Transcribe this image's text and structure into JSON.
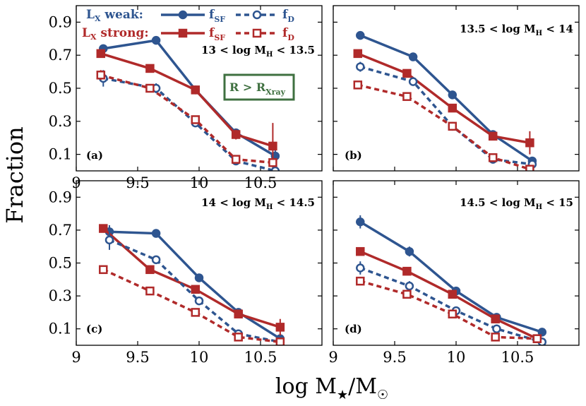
{
  "colors": {
    "weak": "#2e5590",
    "strong": "#b02a2a",
    "annotation": "#3f7040",
    "frame": "#000000"
  },
  "axis_titles": {
    "xlabel": "log M",
    "xlabel_sub": "★",
    "xlabel_tail": "/M",
    "xlabel_sub2": "☉",
    "ylabel": "Fraction"
  },
  "legend": {
    "weak_label": "L",
    "weak_label_sub": "X",
    "weak_label_tail": " weak:",
    "strong_label": "L",
    "strong_label_sub": "X",
    "strong_label_tail": " strong:",
    "fsf_label": "f",
    "fsf_sub": "SF",
    "fd_label": "f",
    "fd_sub": "D"
  },
  "annotation_box": {
    "text": "R > R",
    "sub": "Xray"
  },
  "chart_data": [
    {
      "type": "line",
      "panel_tag": "(a)",
      "range_label": {
        "prefix": "13 < log M",
        "sub": "H",
        "suffix": " < 13.5"
      },
      "xlim": [
        9.0,
        11.0
      ],
      "ylim": [
        0.0,
        1.0
      ],
      "xticks": [
        "9",
        "9.5",
        "10",
        "10.5"
      ],
      "yticks": [
        "0.1",
        "0.3",
        "0.5",
        "0.7",
        "0.9"
      ],
      "series": [
        {
          "name": "LX weak fSF",
          "x": [
            9.22,
            9.65,
            9.97,
            10.3,
            10.62
          ],
          "y": [
            0.74,
            0.79,
            0.49,
            0.23,
            0.09
          ],
          "err": [
            0.02,
            0.015,
            0.02,
            0.02,
            0.04
          ]
        },
        {
          "name": "LX strong fSF",
          "x": [
            9.2,
            9.6,
            9.97,
            10.3,
            10.6
          ],
          "y": [
            0.71,
            0.62,
            0.49,
            0.22,
            0.15
          ],
          "err": [
            0.02,
            0.015,
            0.02,
            0.03,
            0.14
          ]
        },
        {
          "name": "LX weak fD",
          "x": [
            9.22,
            9.65,
            9.97,
            10.3,
            10.62
          ],
          "y": [
            0.56,
            0.5,
            0.29,
            0.06,
            0.0
          ],
          "err": [
            0.05,
            0.03,
            0.02,
            0.015,
            0.02
          ]
        },
        {
          "name": "LX strong fD",
          "x": [
            9.2,
            9.6,
            9.97,
            10.3,
            10.6
          ],
          "y": [
            0.58,
            0.5,
            0.31,
            0.07,
            0.05
          ],
          "err": [
            0.03,
            0.02,
            0.02,
            0.02,
            0.02
          ]
        }
      ]
    },
    {
      "type": "line",
      "panel_tag": "(b)",
      "range_label": {
        "prefix": "13.5 < log M",
        "sub": "H",
        "suffix": " < 14"
      },
      "xlim": [
        9.0,
        11.0
      ],
      "ylim": [
        0.0,
        1.0
      ],
      "xticks": [],
      "yticks": [],
      "series": [
        {
          "name": "LX weak fSF",
          "x": [
            9.22,
            9.65,
            9.97,
            10.3,
            10.62
          ],
          "y": [
            0.82,
            0.69,
            0.46,
            0.22,
            0.06
          ],
          "err": [
            0.02,
            0.015,
            0.015,
            0.015,
            0.015
          ]
        },
        {
          "name": "LX strong fSF",
          "x": [
            9.2,
            9.6,
            9.97,
            10.3,
            10.6
          ],
          "y": [
            0.71,
            0.59,
            0.38,
            0.21,
            0.17
          ],
          "err": [
            0.015,
            0.015,
            0.015,
            0.015,
            0.07
          ]
        },
        {
          "name": "LX weak fD",
          "x": [
            9.22,
            9.65,
            9.97,
            10.3,
            10.62
          ],
          "y": [
            0.63,
            0.54,
            0.27,
            0.07,
            0.04
          ],
          "err": [
            0.03,
            0.02,
            0.015,
            0.015,
            0.015
          ]
        },
        {
          "name": "LX strong fD",
          "x": [
            9.2,
            9.6,
            9.97,
            10.3,
            10.6
          ],
          "y": [
            0.52,
            0.45,
            0.27,
            0.08,
            0.01
          ],
          "err": [
            0.015,
            0.015,
            0.015,
            0.015,
            0.02
          ]
        }
      ]
    },
    {
      "type": "line",
      "panel_tag": "(c)",
      "range_label": {
        "prefix": "14 < log M",
        "sub": "H",
        "suffix": " < 14.5"
      },
      "xlim": [
        9.0,
        11.0
      ],
      "ylim": [
        0.0,
        1.0
      ],
      "xticks": [
        "9",
        "9.5",
        "10",
        "10.5"
      ],
      "yticks": [
        "0.1",
        "0.3",
        "0.5",
        "0.7",
        "0.9"
      ],
      "series": [
        {
          "name": "LX weak fSF",
          "x": [
            9.27,
            9.65,
            10.0,
            10.32,
            10.66
          ],
          "y": [
            0.69,
            0.68,
            0.41,
            0.2,
            0.04
          ],
          "err": [
            0.04,
            0.015,
            0.015,
            0.015,
            0.02
          ]
        },
        {
          "name": "LX strong fSF",
          "x": [
            9.22,
            9.6,
            9.97,
            10.32,
            10.66
          ],
          "y": [
            0.71,
            0.46,
            0.34,
            0.19,
            0.11
          ],
          "err": [
            0.015,
            0.015,
            0.015,
            0.015,
            0.05
          ]
        },
        {
          "name": "LX weak fD",
          "x": [
            9.27,
            9.65,
            10.0,
            10.32,
            10.66
          ],
          "y": [
            0.64,
            0.52,
            0.27,
            0.07,
            0.02
          ],
          "err": [
            0.06,
            0.02,
            0.015,
            0.015,
            0.02
          ]
        },
        {
          "name": "LX strong fD",
          "x": [
            9.22,
            9.6,
            9.97,
            10.32,
            10.66
          ],
          "y": [
            0.46,
            0.33,
            0.2,
            0.05,
            0.02
          ],
          "err": [
            0.015,
            0.015,
            0.015,
            0.015,
            0.015
          ]
        }
      ]
    },
    {
      "type": "line",
      "panel_tag": "(d)",
      "range_label": {
        "prefix": "14.5 < log M",
        "sub": "H",
        "suffix": " < 15"
      },
      "xlim": [
        9.0,
        11.0
      ],
      "ylim": [
        0.0,
        1.0
      ],
      "xticks": [
        "9",
        "9.5",
        "10",
        "10.5"
      ],
      "yticks": [],
      "series": [
        {
          "name": "LX weak fSF",
          "x": [
            9.22,
            9.62,
            10.0,
            10.33,
            10.7
          ],
          "y": [
            0.75,
            0.57,
            0.33,
            0.17,
            0.08
          ],
          "err": [
            0.04,
            0.03,
            0.015,
            0.015,
            0.015
          ]
        },
        {
          "name": "LX strong fSF",
          "x": [
            9.22,
            9.6,
            9.97,
            10.32,
            10.66
          ],
          "y": [
            0.57,
            0.45,
            0.31,
            0.16,
            0.04
          ],
          "err": [
            0.02,
            0.015,
            0.015,
            0.015,
            0.02
          ]
        },
        {
          "name": "LX weak fD",
          "x": [
            9.22,
            9.62,
            10.0,
            10.33,
            10.7
          ],
          "y": [
            0.47,
            0.36,
            0.21,
            0.1,
            0.02
          ],
          "err": [
            0.04,
            0.03,
            0.02,
            0.02,
            0.02
          ]
        },
        {
          "name": "LX strong fD",
          "x": [
            9.22,
            9.6,
            9.97,
            10.32,
            10.66
          ],
          "y": [
            0.39,
            0.31,
            0.19,
            0.05,
            0.04
          ],
          "err": [
            0.015,
            0.015,
            0.015,
            0.015,
            0.015
          ]
        }
      ]
    }
  ]
}
